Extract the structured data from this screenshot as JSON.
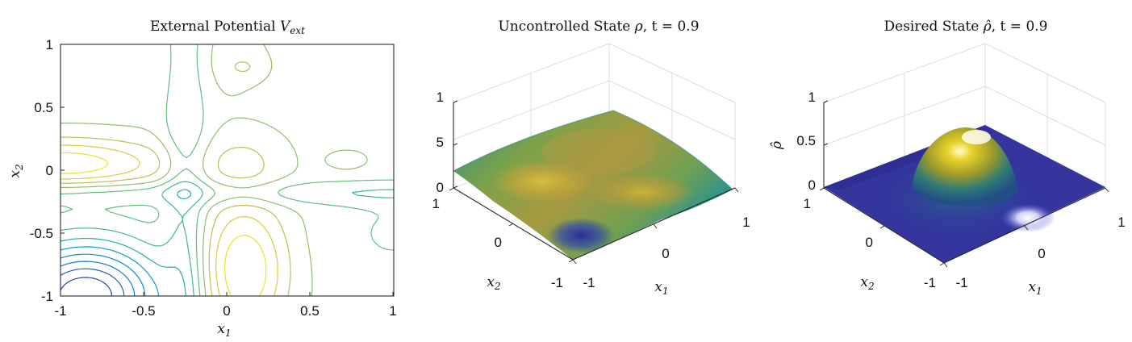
{
  "chart_data": [
    {
      "type": "contour",
      "title": "External Potential V_ext",
      "title_plain": "External Potential ",
      "title_sym": "V",
      "title_sub": "ext",
      "xlabel": "x1",
      "ylabel": "x2",
      "xlim": [
        -1,
        1
      ],
      "ylim": [
        -1,
        1
      ],
      "xticks": [
        "-1",
        "-0.5",
        "0",
        "0.5",
        "1"
      ],
      "yticks": [
        "1",
        "0.5",
        "0",
        "-0.5",
        "-1"
      ],
      "colormap": "parula",
      "levels": 12
    },
    {
      "type": "surface",
      "title": "Uncontrolled State ρ, t = 0.9",
      "title_plain": "Uncontrolled State ",
      "title_sym": "ρ",
      "title_rest": ", t = 0.9",
      "xlabel": "x1",
      "ylabel": "x2",
      "xticks": [
        "-1",
        "0",
        "1"
      ],
      "yticks": [
        "1",
        "0",
        "-1"
      ],
      "zticks": [
        "1",
        "5",
        "0"
      ],
      "colormap": "parula"
    },
    {
      "type": "surface",
      "title": "Desired State ρ̂, t = 0.9",
      "title_plain": "Desired State ",
      "title_sym": "ρ̂",
      "title_rest": ", t = 0.9",
      "xlabel": "x1",
      "ylabel": "x2",
      "zlabel": "ρ̂",
      "xticks": [
        "-1",
        "0",
        "1"
      ],
      "yticks": [
        "1",
        "0",
        "-1"
      ],
      "zticks": [
        "1",
        "0.5",
        "0"
      ],
      "peak": {
        "x1": 0.1,
        "x2": -0.2,
        "height": 0.5
      },
      "colormap": "parula"
    }
  ]
}
